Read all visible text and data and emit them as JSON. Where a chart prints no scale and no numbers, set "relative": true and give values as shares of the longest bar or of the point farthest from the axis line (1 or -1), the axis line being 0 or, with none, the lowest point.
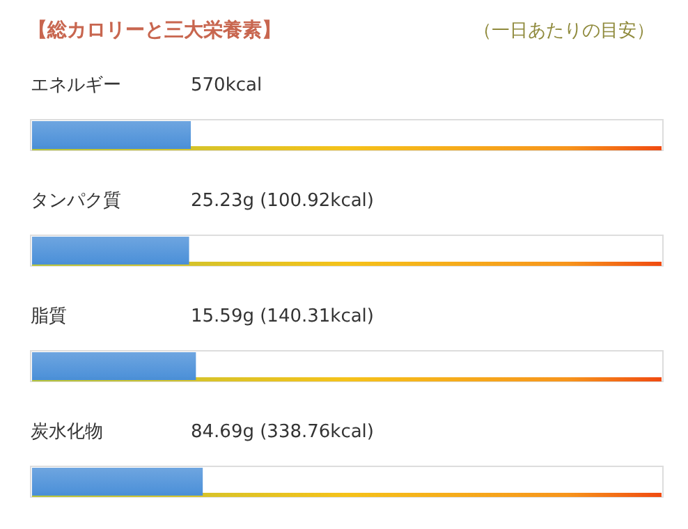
{
  "chart_data": {
    "type": "bar",
    "orientation": "horizontal",
    "relative": true,
    "title": "【総カロリーと三大栄養素】",
    "subtitle": "（一日あたりの目安）",
    "categories": [
      "エネルギー",
      "タンパク質",
      "脂質",
      "炭水化物"
    ],
    "values": [
      0.93,
      0.92,
      0.96,
      1
    ],
    "annotations": [
      "570kcal",
      "25.23g (100.92kcal)",
      "15.59g (140.31kcal)",
      "84.69g (338.76kcal)"
    ],
    "color": "#4a8fd8"
  }
}
